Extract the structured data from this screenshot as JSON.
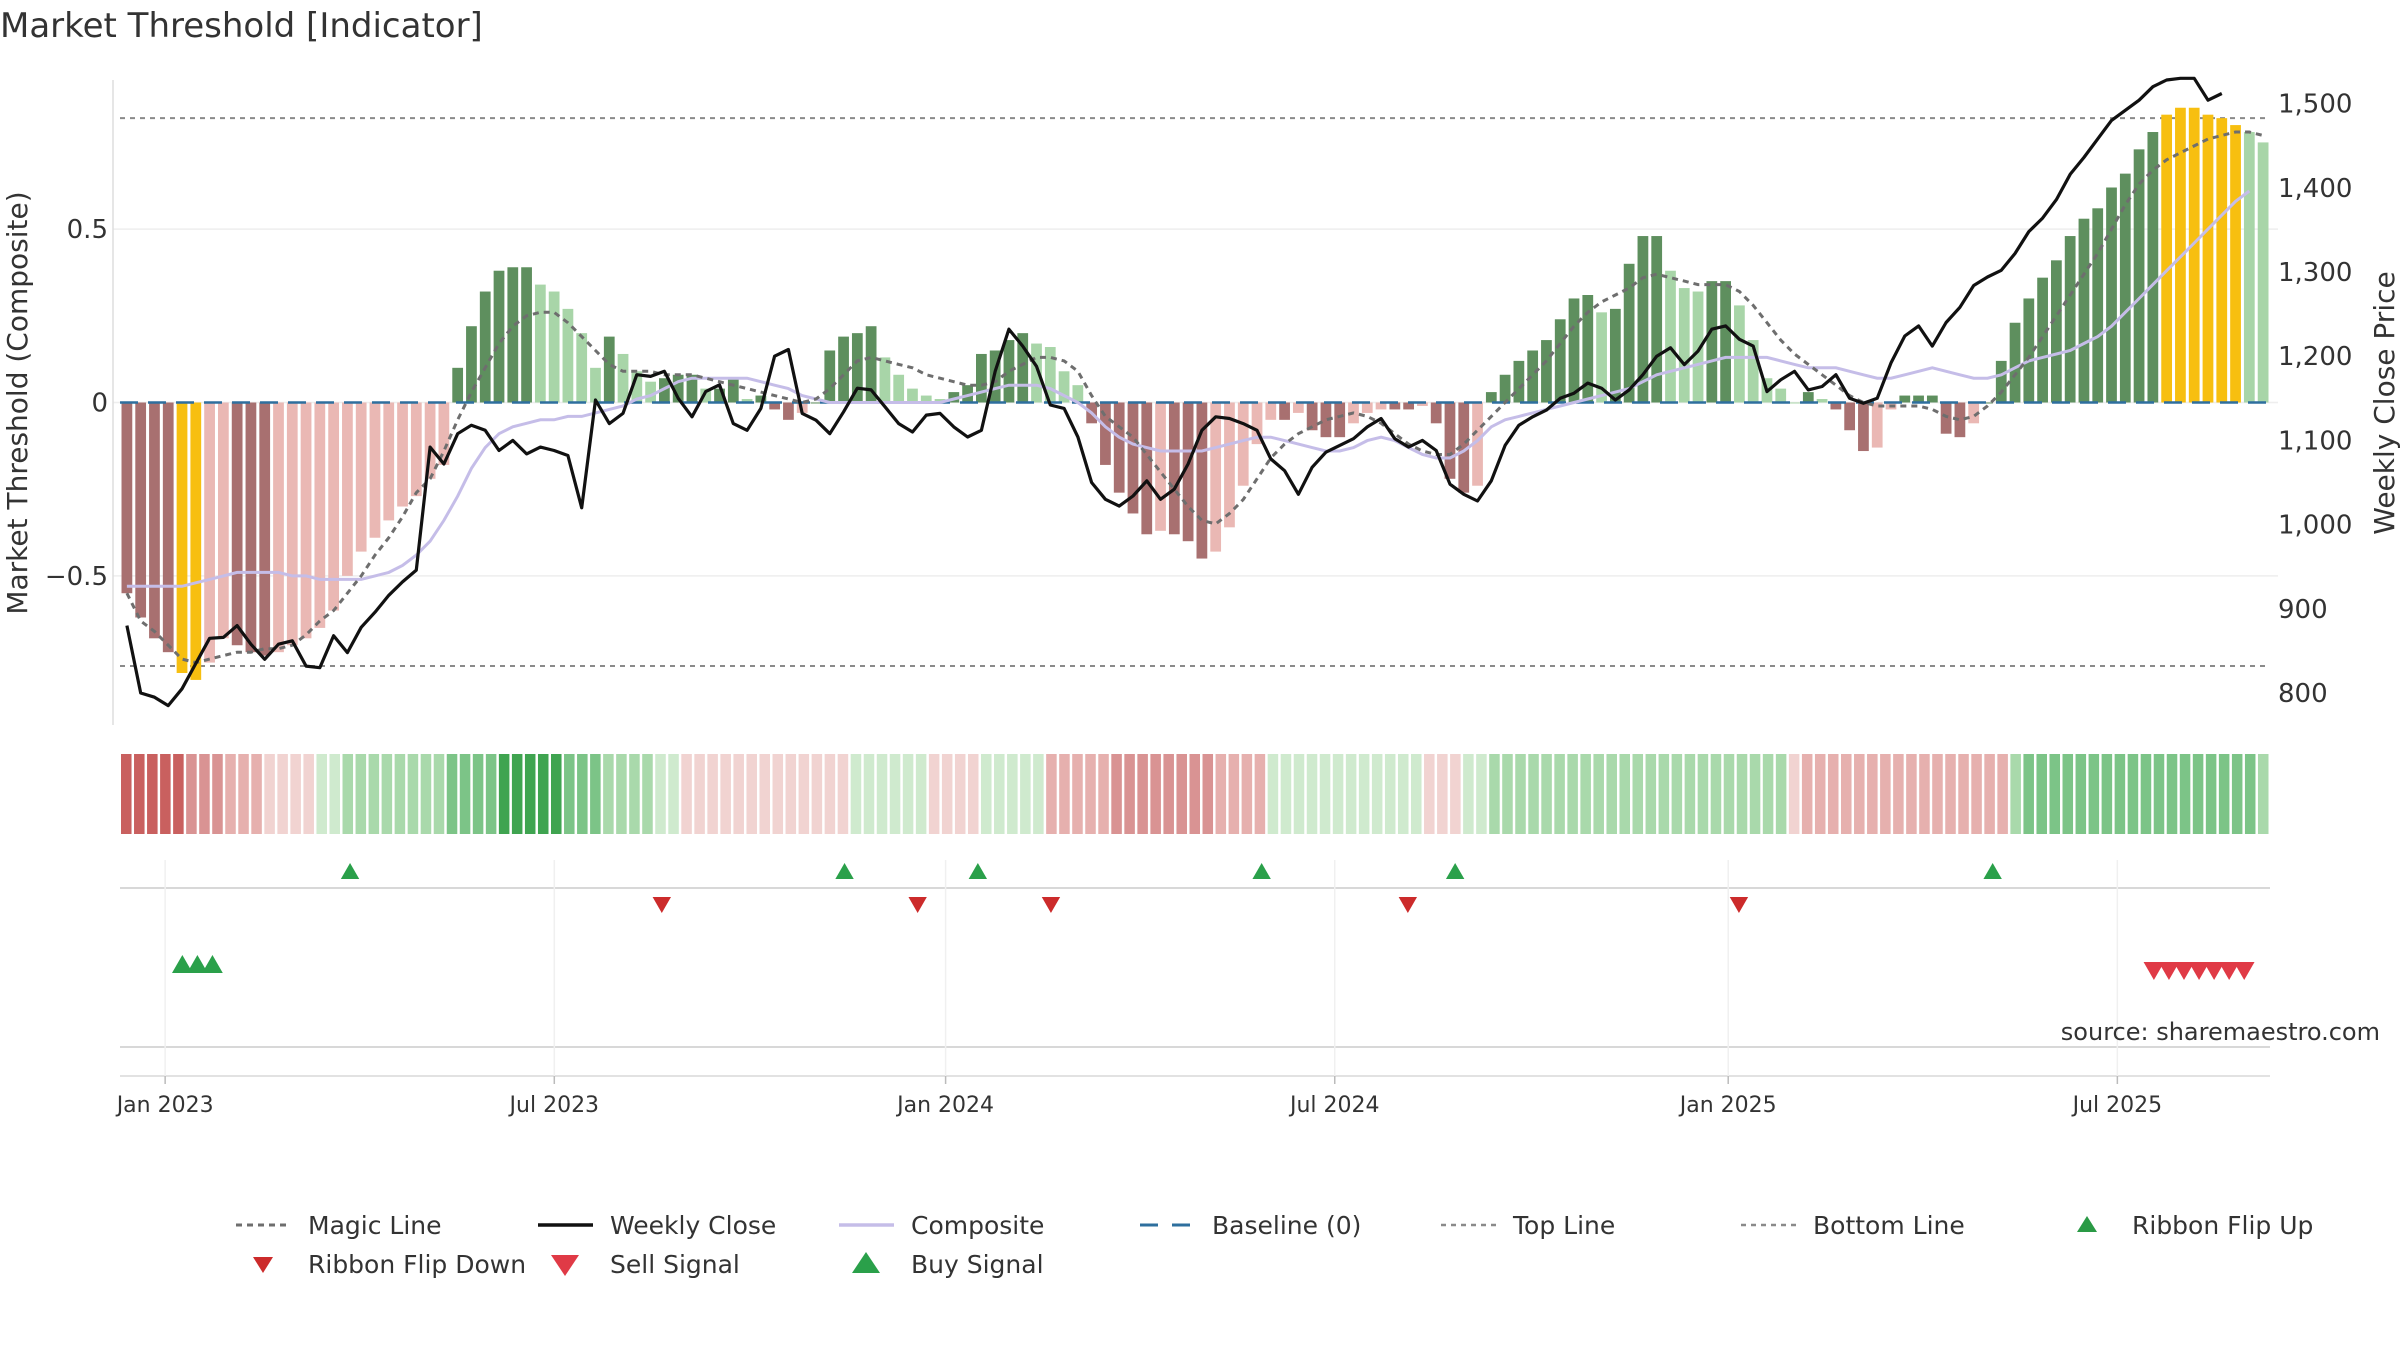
{
  "title": "Market Threshold [Indicator]",
  "source_text": "source: sharemaestro.com",
  "colors": {
    "magic": "#6e6e6e",
    "close": "#111111",
    "composite": "#c5bde8",
    "baseline": "#2e6f9e",
    "threshold": "#8a8a8a",
    "buy": "#2aa04a",
    "sell": "#e03a46",
    "flip_down": "#cc2b2b",
    "flip_up": "#2a9a45",
    "bar_strong_up": "#5e8f5e",
    "bar_weak_up": "#a8d5a8",
    "bar_strong_down": "#a87070",
    "bar_weak_down": "#eab8b4",
    "bar_extreme": "#f7bf10",
    "ribbon_green": "#3fa450",
    "ribbon_red": "#c9605f"
  },
  "chart_data": {
    "type": "bar",
    "title": "Market Threshold [Indicator]",
    "ylabel": "Market Threshold (Composite)",
    "y2label": "Weekly Close Price",
    "ylim": [
      -0.93,
      0.93
    ],
    "y2lim": [
      762,
      1528
    ],
    "yticks": [
      -0.5,
      0,
      0.5
    ],
    "ytick_labels": [
      "−0.5",
      "0",
      "0.5"
    ],
    "y2ticks": [
      800,
      900,
      1000,
      1100,
      1200,
      1300,
      1400,
      1500
    ],
    "y2tick_labels": [
      "800",
      "900",
      "1,000",
      "1,100",
      "1,200",
      "1,300",
      "1,400",
      "1,500"
    ],
    "xticks": [
      "Jan 2023",
      "Jul 2023",
      "Jan 2024",
      "Jul 2024",
      "Jan 2025",
      "Jul 2025"
    ],
    "top_line": 0.82,
    "bottom_line": -0.76,
    "baseline": 0,
    "bars": [
      -0.55,
      -0.62,
      -0.68,
      -0.72,
      -0.78,
      -0.8,
      -0.75,
      -0.68,
      -0.7,
      -0.72,
      -0.73,
      -0.72,
      -0.7,
      -0.68,
      -0.65,
      -0.6,
      -0.5,
      -0.43,
      -0.39,
      -0.34,
      -0.3,
      -0.27,
      -0.22,
      -0.18,
      0.1,
      0.22,
      0.32,
      0.38,
      0.39,
      0.39,
      0.34,
      0.32,
      0.27,
      0.2,
      0.1,
      0.19,
      0.14,
      0.09,
      0.06,
      0.07,
      0.08,
      0.08,
      0.04,
      0.04,
      0.07,
      0.01,
      0.02,
      -0.02,
      -0.05,
      -0.03,
      0.0,
      0.15,
      0.19,
      0.2,
      0.22,
      0.13,
      0.08,
      0.04,
      0.02,
      0.01,
      0.03,
      0.05,
      0.14,
      0.15,
      0.18,
      0.2,
      0.17,
      0.16,
      0.09,
      0.05,
      -0.06,
      -0.18,
      -0.26,
      -0.32,
      -0.38,
      -0.37,
      -0.38,
      -0.4,
      -0.45,
      -0.43,
      -0.36,
      -0.24,
      -0.12,
      -0.05,
      -0.05,
      -0.03,
      -0.08,
      -0.1,
      -0.1,
      -0.06,
      -0.03,
      -0.02,
      -0.02,
      -0.02,
      -0.01,
      -0.06,
      -0.22,
      -0.26,
      -0.24,
      0.03,
      0.08,
      0.12,
      0.15,
      0.18,
      0.24,
      0.3,
      0.31,
      0.26,
      0.27,
      0.4,
      0.48,
      0.48,
      0.38,
      0.33,
      0.32,
      0.35,
      0.35,
      0.28,
      0.18,
      0.07,
      0.04,
      0.0,
      0.03,
      0.01,
      -0.02,
      -0.08,
      -0.14,
      -0.13,
      -0.02,
      0.02,
      0.02,
      0.02,
      -0.09,
      -0.1,
      -0.06,
      0.0,
      0.12,
      0.23,
      0.3,
      0.36,
      0.41,
      0.48,
      0.53,
      0.56,
      0.62,
      0.66,
      0.73,
      0.78,
      0.83,
      0.85,
      0.85,
      0.83,
      0.82,
      0.8,
      0.78,
      0.75
    ],
    "magic_line": [
      -0.55,
      -0.63,
      -0.66,
      -0.7,
      -0.74,
      -0.75,
      -0.74,
      -0.73,
      -0.72,
      -0.72,
      -0.71,
      -0.71,
      -0.7,
      -0.67,
      -0.63,
      -0.6,
      -0.55,
      -0.5,
      -0.44,
      -0.39,
      -0.33,
      -0.26,
      -0.22,
      -0.14,
      -0.05,
      0.03,
      0.1,
      0.17,
      0.22,
      0.25,
      0.26,
      0.26,
      0.23,
      0.19,
      0.15,
      0.11,
      0.09,
      0.09,
      0.09,
      0.08,
      0.08,
      0.08,
      0.07,
      0.06,
      0.05,
      0.04,
      0.03,
      0.02,
      0.01,
      0.0,
      0.01,
      0.04,
      0.08,
      0.12,
      0.13,
      0.12,
      0.11,
      0.1,
      0.08,
      0.07,
      0.06,
      0.05,
      0.05,
      0.06,
      0.09,
      0.11,
      0.13,
      0.13,
      0.12,
      0.09,
      0.02,
      -0.04,
      -0.07,
      -0.1,
      -0.15,
      -0.2,
      -0.25,
      -0.3,
      -0.34,
      -0.35,
      -0.32,
      -0.28,
      -0.22,
      -0.16,
      -0.12,
      -0.09,
      -0.07,
      -0.05,
      -0.04,
      -0.03,
      -0.04,
      -0.06,
      -0.09,
      -0.12,
      -0.14,
      -0.15,
      -0.15,
      -0.12,
      -0.08,
      -0.04,
      0.0,
      0.04,
      0.08,
      0.12,
      0.17,
      0.22,
      0.26,
      0.29,
      0.31,
      0.33,
      0.36,
      0.37,
      0.36,
      0.35,
      0.34,
      0.34,
      0.34,
      0.32,
      0.28,
      0.23,
      0.18,
      0.14,
      0.11,
      0.08,
      0.05,
      0.02,
      0.0,
      -0.01,
      -0.01,
      -0.01,
      -0.01,
      -0.02,
      -0.04,
      -0.05,
      -0.04,
      -0.01,
      0.03,
      0.08,
      0.13,
      0.19,
      0.25,
      0.31,
      0.37,
      0.43,
      0.5,
      0.57,
      0.63,
      0.67,
      0.7,
      0.72,
      0.74,
      0.76,
      0.77,
      0.78,
      0.78,
      0.77
    ],
    "composite": [
      -0.53,
      -0.53,
      -0.53,
      -0.53,
      -0.53,
      -0.52,
      -0.51,
      -0.5,
      -0.49,
      -0.49,
      -0.49,
      -0.49,
      -0.5,
      -0.5,
      -0.51,
      -0.51,
      -0.51,
      -0.51,
      -0.5,
      -0.49,
      -0.47,
      -0.44,
      -0.4,
      -0.34,
      -0.27,
      -0.19,
      -0.13,
      -0.09,
      -0.07,
      -0.06,
      -0.05,
      -0.05,
      -0.04,
      -0.04,
      -0.03,
      -0.02,
      -0.01,
      0.01,
      0.02,
      0.04,
      0.06,
      0.07,
      0.07,
      0.07,
      0.07,
      0.07,
      0.06,
      0.05,
      0.04,
      0.02,
      0.01,
      0.0,
      0.0,
      0.0,
      0.0,
      0.0,
      0.0,
      0.0,
      0.0,
      0.0,
      0.01,
      0.02,
      0.03,
      0.04,
      0.05,
      0.05,
      0.05,
      0.04,
      0.02,
      0.0,
      -0.03,
      -0.07,
      -0.1,
      -0.12,
      -0.13,
      -0.14,
      -0.14,
      -0.14,
      -0.14,
      -0.13,
      -0.12,
      -0.11,
      -0.1,
      -0.1,
      -0.11,
      -0.12,
      -0.13,
      -0.14,
      -0.14,
      -0.13,
      -0.11,
      -0.1,
      -0.11,
      -0.13,
      -0.15,
      -0.16,
      -0.16,
      -0.14,
      -0.11,
      -0.07,
      -0.05,
      -0.04,
      -0.03,
      -0.02,
      -0.01,
      0.0,
      0.01,
      0.02,
      0.03,
      0.04,
      0.06,
      0.08,
      0.09,
      0.1,
      0.11,
      0.12,
      0.13,
      0.13,
      0.13,
      0.13,
      0.12,
      0.11,
      0.1,
      0.1,
      0.1,
      0.09,
      0.08,
      0.07,
      0.07,
      0.08,
      0.09,
      0.1,
      0.09,
      0.08,
      0.07,
      0.07,
      0.08,
      0.1,
      0.12,
      0.13,
      0.14,
      0.15,
      0.17,
      0.19,
      0.22,
      0.26,
      0.3,
      0.34,
      0.38,
      0.42,
      0.46,
      0.5,
      0.54,
      0.58,
      0.61
    ],
    "weekly_close": [
      888,
      808,
      805,
      800,
      812,
      838,
      862,
      868,
      875,
      862,
      850,
      862,
      868,
      838,
      838,
      864,
      850,
      872,
      888,
      910,
      920,
      930,
      1018,
      1006,
      1032,
      1044,
      1040,
      1022,
      1032,
      1018,
      1024,
      1022,
      1016,
      980,
      1110,
      1080,
      1098,
      1132,
      1130,
      1134,
      1105,
      1085,
      1112,
      1116,
      1080,
      1070,
      1092,
      1148,
      1156,
      1086,
      1084,
      1072,
      1094,
      1120,
      1120,
      1100,
      1080,
      1072,
      1090,
      1090,
      1075,
      1065,
      1072,
      1125,
      1180,
      1160,
      1140,
      1104,
      1100,
      1070,
      1020,
      1000,
      990,
      1000,
      1018,
      998,
      1010,
      1040,
      1080,
      1090,
      1090,
      1086,
      1078,
      1048,
      1036,
      1008,
      1040,
      1055,
      1060,
      1070,
      1082,
      1090,
      1070,
      1060,
      1068,
      1058,
      1018,
      1008,
      1000,
      1020,
      1060,
      1080,
      1090,
      1096,
      1108,
      1112,
      1125,
      1120,
      1108,
      1120,
      1136,
      1158,
      1166,
      1148,
      1164,
      1188,
      1192,
      1176,
      1170,
      1118,
      1132,
      1140,
      1120,
      1124,
      1136,
      1110,
      1104,
      1110,
      1150,
      1180,
      1192,
      1170,
      1196,
      1214,
      1238,
      1248,
      1256,
      1276,
      1302,
      1318,
      1340,
      1370,
      1390,
      1412,
      1434,
      1446,
      1458,
      1474,
      1484,
      1488,
      1488,
      1462,
      1470
    ],
    "price_line": [
      880,
      800,
      795,
      785,
      805,
      835,
      865,
      866,
      880,
      858,
      840,
      858,
      862,
      832,
      830,
      868,
      848,
      878,
      896,
      916,
      932,
      946,
      1092,
      1072,
      1108,
      1118,
      1112,
      1088,
      1100,
      1084,
      1092,
      1088,
      1082,
      1020,
      1148,
      1120,
      1132,
      1178,
      1176,
      1182,
      1150,
      1128,
      1158,
      1166,
      1120,
      1112,
      1138,
      1200,
      1208,
      1132,
      1124,
      1108,
      1134,
      1162,
      1160,
      1140,
      1120,
      1110,
      1130,
      1132,
      1116,
      1104,
      1112,
      1182,
      1232,
      1212,
      1188,
      1142,
      1138,
      1104,
      1050,
      1030,
      1022,
      1034,
      1052,
      1030,
      1042,
      1072,
      1112,
      1128,
      1126,
      1120,
      1112,
      1078,
      1064,
      1036,
      1068,
      1086,
      1094,
      1102,
      1116,
      1126,
      1102,
      1092,
      1100,
      1088,
      1048,
      1036,
      1028,
      1052,
      1094,
      1118,
      1128,
      1136,
      1150,
      1156,
      1168,
      1162,
      1148,
      1160,
      1178,
      1200,
      1210,
      1190,
      1206,
      1232,
      1236,
      1220,
      1212,
      1158,
      1172,
      1182,
      1160,
      1164,
      1178,
      1150,
      1144,
      1150,
      1192,
      1224,
      1236,
      1212,
      1240,
      1258,
      1284,
      1294,
      1302,
      1322,
      1348,
      1364,
      1386,
      1416,
      1436,
      1458,
      1480,
      1492,
      1504,
      1520,
      1528,
      1530,
      1530,
      1504,
      1512
    ]
  },
  "ribbon": [
    "r4",
    "r4",
    "r4",
    "r4",
    "r4",
    "r3",
    "r3",
    "r3",
    "r2",
    "r2",
    "r2",
    "r1",
    "r1",
    "r1",
    "r1",
    "g1",
    "g1",
    "g2",
    "g2",
    "g2",
    "g2",
    "g2",
    "g2",
    "g2",
    "g2",
    "g3",
    "g3",
    "g3",
    "g3",
    "g4",
    "g4",
    "g4",
    "g4",
    "g4",
    "g3",
    "g3",
    "g3",
    "g2",
    "g2",
    "g2",
    "g2",
    "g1",
    "g1",
    "r1",
    "r1",
    "r1",
    "r1",
    "r1",
    "r1",
    "r1",
    "r1",
    "r1",
    "r1",
    "r1",
    "r1",
    "r1",
    "g1",
    "g1",
    "g1",
    "g1",
    "g1",
    "g1",
    "r1",
    "r1",
    "r1",
    "r1",
    "g1",
    "g1",
    "g1",
    "g1",
    "g1",
    "r2",
    "r2",
    "r2",
    "r2",
    "r2",
    "r3",
    "r3",
    "r3",
    "r3",
    "r3",
    "r3",
    "r3",
    "r3",
    "r2",
    "r2",
    "r2",
    "r2",
    "g1",
    "g1",
    "g1",
    "g1",
    "g1",
    "g1",
    "g1",
    "g1",
    "g1",
    "g1",
    "g1",
    "g1",
    "r1",
    "r1",
    "r1",
    "g1",
    "g1",
    "g2",
    "g2",
    "g2",
    "g2",
    "g2",
    "g2",
    "g2",
    "g2",
    "g2",
    "g2",
    "g2",
    "g2",
    "g2",
    "g2",
    "g2",
    "g2",
    "g2",
    "g2",
    "g2",
    "g2",
    "g2",
    "g2",
    "g2",
    "r1",
    "r2",
    "r2",
    "r2",
    "r2",
    "r2",
    "r2",
    "r2",
    "r2",
    "r2",
    "r2",
    "r2",
    "r2",
    "r2",
    "r2",
    "r2",
    "r2",
    "g2",
    "g3",
    "g3",
    "g3",
    "g3",
    "g3",
    "g3",
    "g3",
    "g3",
    "g3",
    "g3",
    "g3",
    "g3",
    "g3",
    "g3",
    "g3",
    "g3",
    "g3",
    "g3",
    "g2"
  ],
  "signals_row1": {
    "buy": [
      0.107,
      0.337,
      0.399,
      0.531,
      0.621,
      0.871
    ],
    "flip_down": [
      0.252,
      0.371,
      0.433,
      0.599,
      0.753
    ]
  },
  "signals_row2": {
    "buy": [
      0.029,
      0.036,
      0.043
    ],
    "sell": [
      0.946,
      0.953,
      0.96,
      0.967,
      0.974,
      0.981,
      0.988
    ]
  },
  "legend": [
    {
      "key": "magic",
      "label": "Magic Line"
    },
    {
      "key": "close",
      "label": "Weekly Close"
    },
    {
      "key": "composite",
      "label": "Composite"
    },
    {
      "key": "baseline",
      "label": "Baseline (0)"
    },
    {
      "key": "top",
      "label": "Top Line"
    },
    {
      "key": "bottom",
      "label": "Bottom Line"
    },
    {
      "key": "flip_up",
      "label": "Ribbon Flip Up"
    },
    {
      "key": "flip_down",
      "label": "Ribbon Flip Down"
    },
    {
      "key": "sell",
      "label": "Sell Signal"
    },
    {
      "key": "buy",
      "label": "Buy Signal"
    }
  ]
}
